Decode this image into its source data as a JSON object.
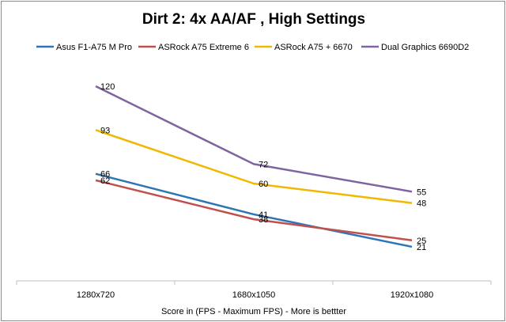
{
  "chart_data": {
    "type": "line",
    "title": "Dirt 2: 4x AA/AF , High Settings",
    "xlabel": "Score in (FPS - Maximum FPS) - More is bettter",
    "ylabel": "",
    "categories": [
      "1280x720",
      "1680x1050",
      "1920x1080"
    ],
    "ylim": [
      0,
      130
    ],
    "grid": false,
    "legend_position": "top",
    "series": [
      {
        "name": "Asus F1-A75 M Pro",
        "color": "#2e75b6",
        "values": [
          66,
          41,
          21
        ]
      },
      {
        "name": "ASRock A75 Extreme 6",
        "color": "#c0504d",
        "values": [
          62,
          38,
          25
        ]
      },
      {
        "name": "ASRock A75 + 6670",
        "color": "#f2b800",
        "values": [
          93,
          60,
          48
        ]
      },
      {
        "name": "Dual Graphics 6690D2",
        "color": "#8064a2",
        "values": [
          120,
          72,
          55
        ]
      }
    ]
  }
}
